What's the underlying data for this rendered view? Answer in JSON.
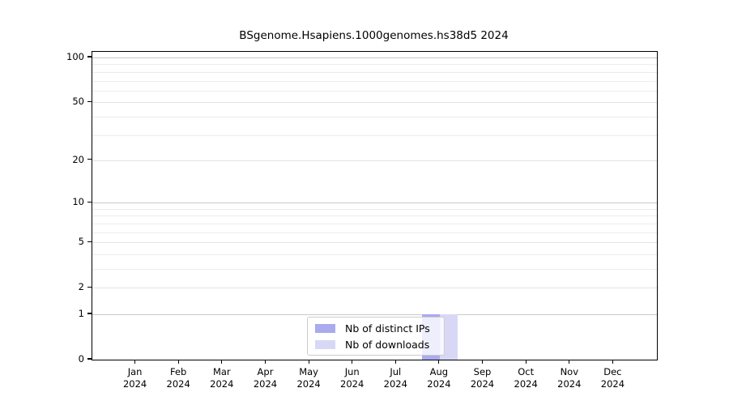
{
  "title": "BSgenome.Hsapiens.1000genomes.hs38d5 2024",
  "colors": {
    "distinct_ips": "#aaaaee",
    "downloads": "#d8d8f6",
    "grid_major": "#c8c8c8",
    "grid_mid": "#e3e3e3",
    "grid_minor": "#ececec",
    "axis": "#000000",
    "legend_border": "#cccccc"
  },
  "legend": {
    "items": [
      {
        "label": "Nb of distinct IPs",
        "color_key": "distinct_ips"
      },
      {
        "label": "Nb of downloads",
        "color_key": "downloads"
      }
    ]
  },
  "y_axis": {
    "tick_labels": [
      "0",
      "1",
      "2",
      "5",
      "10",
      "20",
      "50",
      "100"
    ]
  },
  "chart_data": {
    "type": "bar",
    "title": "BSgenome.Hsapiens.1000genomes.hs38d5 2024",
    "categories": [
      "Jan 2024",
      "Feb 2024",
      "Mar 2024",
      "Apr 2024",
      "May 2024",
      "Jun 2024",
      "Jul 2024",
      "Aug 2024",
      "Sep 2024",
      "Oct 2024",
      "Nov 2024",
      "Dec 2024"
    ],
    "series": [
      {
        "name": "Nb of distinct IPs",
        "values": [
          0,
          0,
          0,
          0,
          0,
          0,
          0,
          1,
          0,
          0,
          0,
          0
        ]
      },
      {
        "name": "Nb of downloads",
        "values": [
          0,
          0,
          0,
          0,
          0,
          0,
          0,
          1,
          0,
          0,
          0,
          0
        ]
      }
    ],
    "yscale": "log10(1+x)",
    "yticks": [
      0,
      1,
      2,
      5,
      10,
      20,
      50,
      100
    ],
    "major_grid_values": [
      1,
      10,
      100
    ],
    "mid_grid_values": [
      2,
      5,
      20,
      50
    ],
    "minor_grid_values": [
      3,
      4,
      6,
      7,
      8,
      9,
      30,
      40,
      60,
      70,
      80,
      90
    ],
    "ylim": [
      0,
      109
    ],
    "grid": true,
    "legend_position": "bottom-center"
  }
}
